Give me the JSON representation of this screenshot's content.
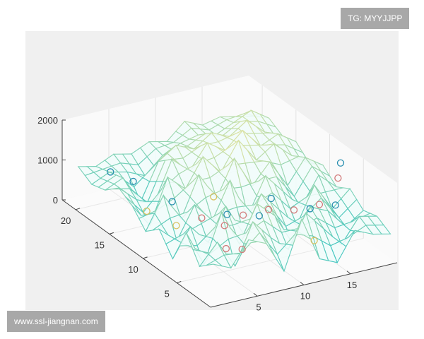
{
  "watermarks": {
    "top_right": "TG: MYYJJPP",
    "bottom_left": "www.ssl-jiangnan.com"
  },
  "chart_data": {
    "type": "surface-mesh-3d",
    "title": "",
    "xlabel": "",
    "ylabel": "",
    "zlabel": "",
    "xlim": [
      0,
      20
    ],
    "ylim": [
      0,
      22
    ],
    "zlim": [
      0,
      2000
    ],
    "x_ticks": [
      5,
      10,
      15
    ],
    "y_ticks": [
      5,
      10,
      15,
      20
    ],
    "z_ticks": [
      0,
      1000,
      2000
    ],
    "grid": true,
    "colors": {
      "low": "#35c4c4",
      "high": "#efe6a0",
      "marker_blue": "#2a8fb0",
      "marker_red": "#d27a7a",
      "marker_yellow": "#d8c060"
    },
    "x": [
      1,
      2.9,
      4.8,
      6.7,
      8.6,
      10.5,
      12.4,
      14.3,
      16.2,
      18.1,
      20
    ],
    "y": [
      1,
      3,
      5,
      7,
      9,
      11,
      13,
      15,
      17,
      19,
      21
    ],
    "z": [
      [
        900,
        700,
        1300,
        1100,
        300,
        1500,
        400,
        200,
        900,
        700,
        600
      ],
      [
        600,
        1100,
        400,
        1400,
        900,
        500,
        1300,
        800,
        300,
        900,
        800
      ],
      [
        1200,
        300,
        1500,
        600,
        1500,
        1100,
        300,
        1100,
        900,
        400,
        700
      ],
      [
        300,
        1000,
        500,
        1300,
        500,
        1400,
        900,
        400,
        1300,
        600,
        1000
      ],
      [
        800,
        400,
        1200,
        700,
        1600,
        600,
        1500,
        1000,
        500,
        1200,
        800
      ],
      [
        500,
        1300,
        600,
        1600,
        900,
        1800,
        1000,
        1500,
        800,
        1400,
        1100
      ],
      [
        900,
        300,
        1400,
        1000,
        1700,
        1200,
        1900,
        1300,
        1600,
        1200,
        900
      ],
      [
        1100,
        700,
        500,
        1500,
        1100,
        1700,
        1400,
        1800,
        1300,
        1500,
        1200
      ],
      [
        800,
        1000,
        300,
        1200,
        1500,
        1300,
        1600,
        1400,
        1700,
        1300,
        1100
      ],
      [
        700,
        900,
        800,
        600,
        1000,
        1200,
        1300,
        1200,
        1400,
        1600,
        1300
      ],
      [
        900,
        800,
        1000,
        900,
        1100,
        1000,
        1400,
        1200,
        1300,
        1200,
        1100
      ]
    ],
    "markers": [
      {
        "x": 3,
        "y": 19,
        "z": 900,
        "c": "blue"
      },
      {
        "x": 4,
        "y": 17,
        "z": 850,
        "c": "blue"
      },
      {
        "x": 6,
        "y": 14,
        "z": 600,
        "c": "blue"
      },
      {
        "x": 7,
        "y": 11,
        "z": 500,
        "c": "red"
      },
      {
        "x": 8,
        "y": 9,
        "z": 500,
        "c": "red"
      },
      {
        "x": 9,
        "y": 10,
        "z": 600,
        "c": "blue"
      },
      {
        "x": 10,
        "y": 9,
        "z": 650,
        "c": "red"
      },
      {
        "x": 11,
        "y": 8,
        "z": 700,
        "c": "blue"
      },
      {
        "x": 12,
        "y": 8,
        "z": 800,
        "c": "red"
      },
      {
        "x": 13,
        "y": 9,
        "z": 900,
        "c": "blue"
      },
      {
        "x": 14,
        "y": 7,
        "z": 800,
        "c": "red"
      },
      {
        "x": 15,
        "y": 6,
        "z": 900,
        "c": "blue"
      },
      {
        "x": 16,
        "y": 6,
        "z": 950,
        "c": "red"
      },
      {
        "x": 17,
        "y": 5,
        "z": 1000,
        "c": "blue"
      },
      {
        "x": 18,
        "y": 6,
        "z": 1500,
        "c": "red"
      },
      {
        "x": 19,
        "y": 7,
        "z": 1700,
        "c": "blue"
      },
      {
        "x": 6,
        "y": 6,
        "z": 400,
        "c": "red"
      },
      {
        "x": 7,
        "y": 5,
        "z": 450,
        "c": "red"
      },
      {
        "x": 5,
        "y": 12,
        "z": 300,
        "c": "yellow"
      },
      {
        "x": 4,
        "y": 15,
        "z": 350,
        "c": "yellow"
      },
      {
        "x": 9,
        "y": 12,
        "z": 800,
        "c": "yellow"
      },
      {
        "x": 14,
        "y": 4,
        "z": 400,
        "c": "yellow"
      }
    ]
  }
}
